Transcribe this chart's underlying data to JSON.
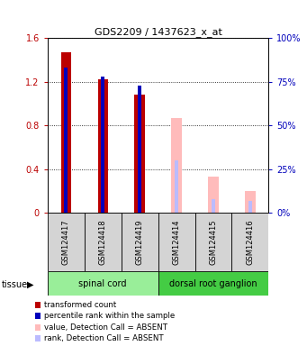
{
  "title": "GDS2209 / 1437623_x_at",
  "samples": [
    "GSM124417",
    "GSM124418",
    "GSM124419",
    "GSM124414",
    "GSM124415",
    "GSM124416"
  ],
  "detection_call": [
    "P",
    "P",
    "P",
    "A",
    "A",
    "A"
  ],
  "transformed_count": [
    1.47,
    1.22,
    1.08,
    0.87,
    0.33,
    0.2
  ],
  "percentile_rank": [
    83,
    78,
    73,
    30,
    8,
    7
  ],
  "red_color": "#bb0000",
  "blue_color": "#0000bb",
  "pink_color": "#ffbbbb",
  "lightblue_color": "#bbbbff",
  "ylim_left": [
    0,
    1.6
  ],
  "ylim_right": [
    0,
    100
  ],
  "yticks_left": [
    0,
    0.4,
    0.8,
    1.2,
    1.6
  ],
  "yticks_right": [
    0,
    25,
    50,
    75,
    100
  ],
  "group_colors": {
    "spinal cord": "#99ee99",
    "dorsal root ganglion": "#44cc44"
  },
  "tissue_label": "tissue",
  "legend_items": [
    {
      "label": "transformed count",
      "color": "#bb0000"
    },
    {
      "label": "percentile rank within the sample",
      "color": "#0000bb"
    },
    {
      "label": "value, Detection Call = ABSENT",
      "color": "#ffbbbb"
    },
    {
      "label": "rank, Detection Call = ABSENT",
      "color": "#bbbbff"
    }
  ]
}
